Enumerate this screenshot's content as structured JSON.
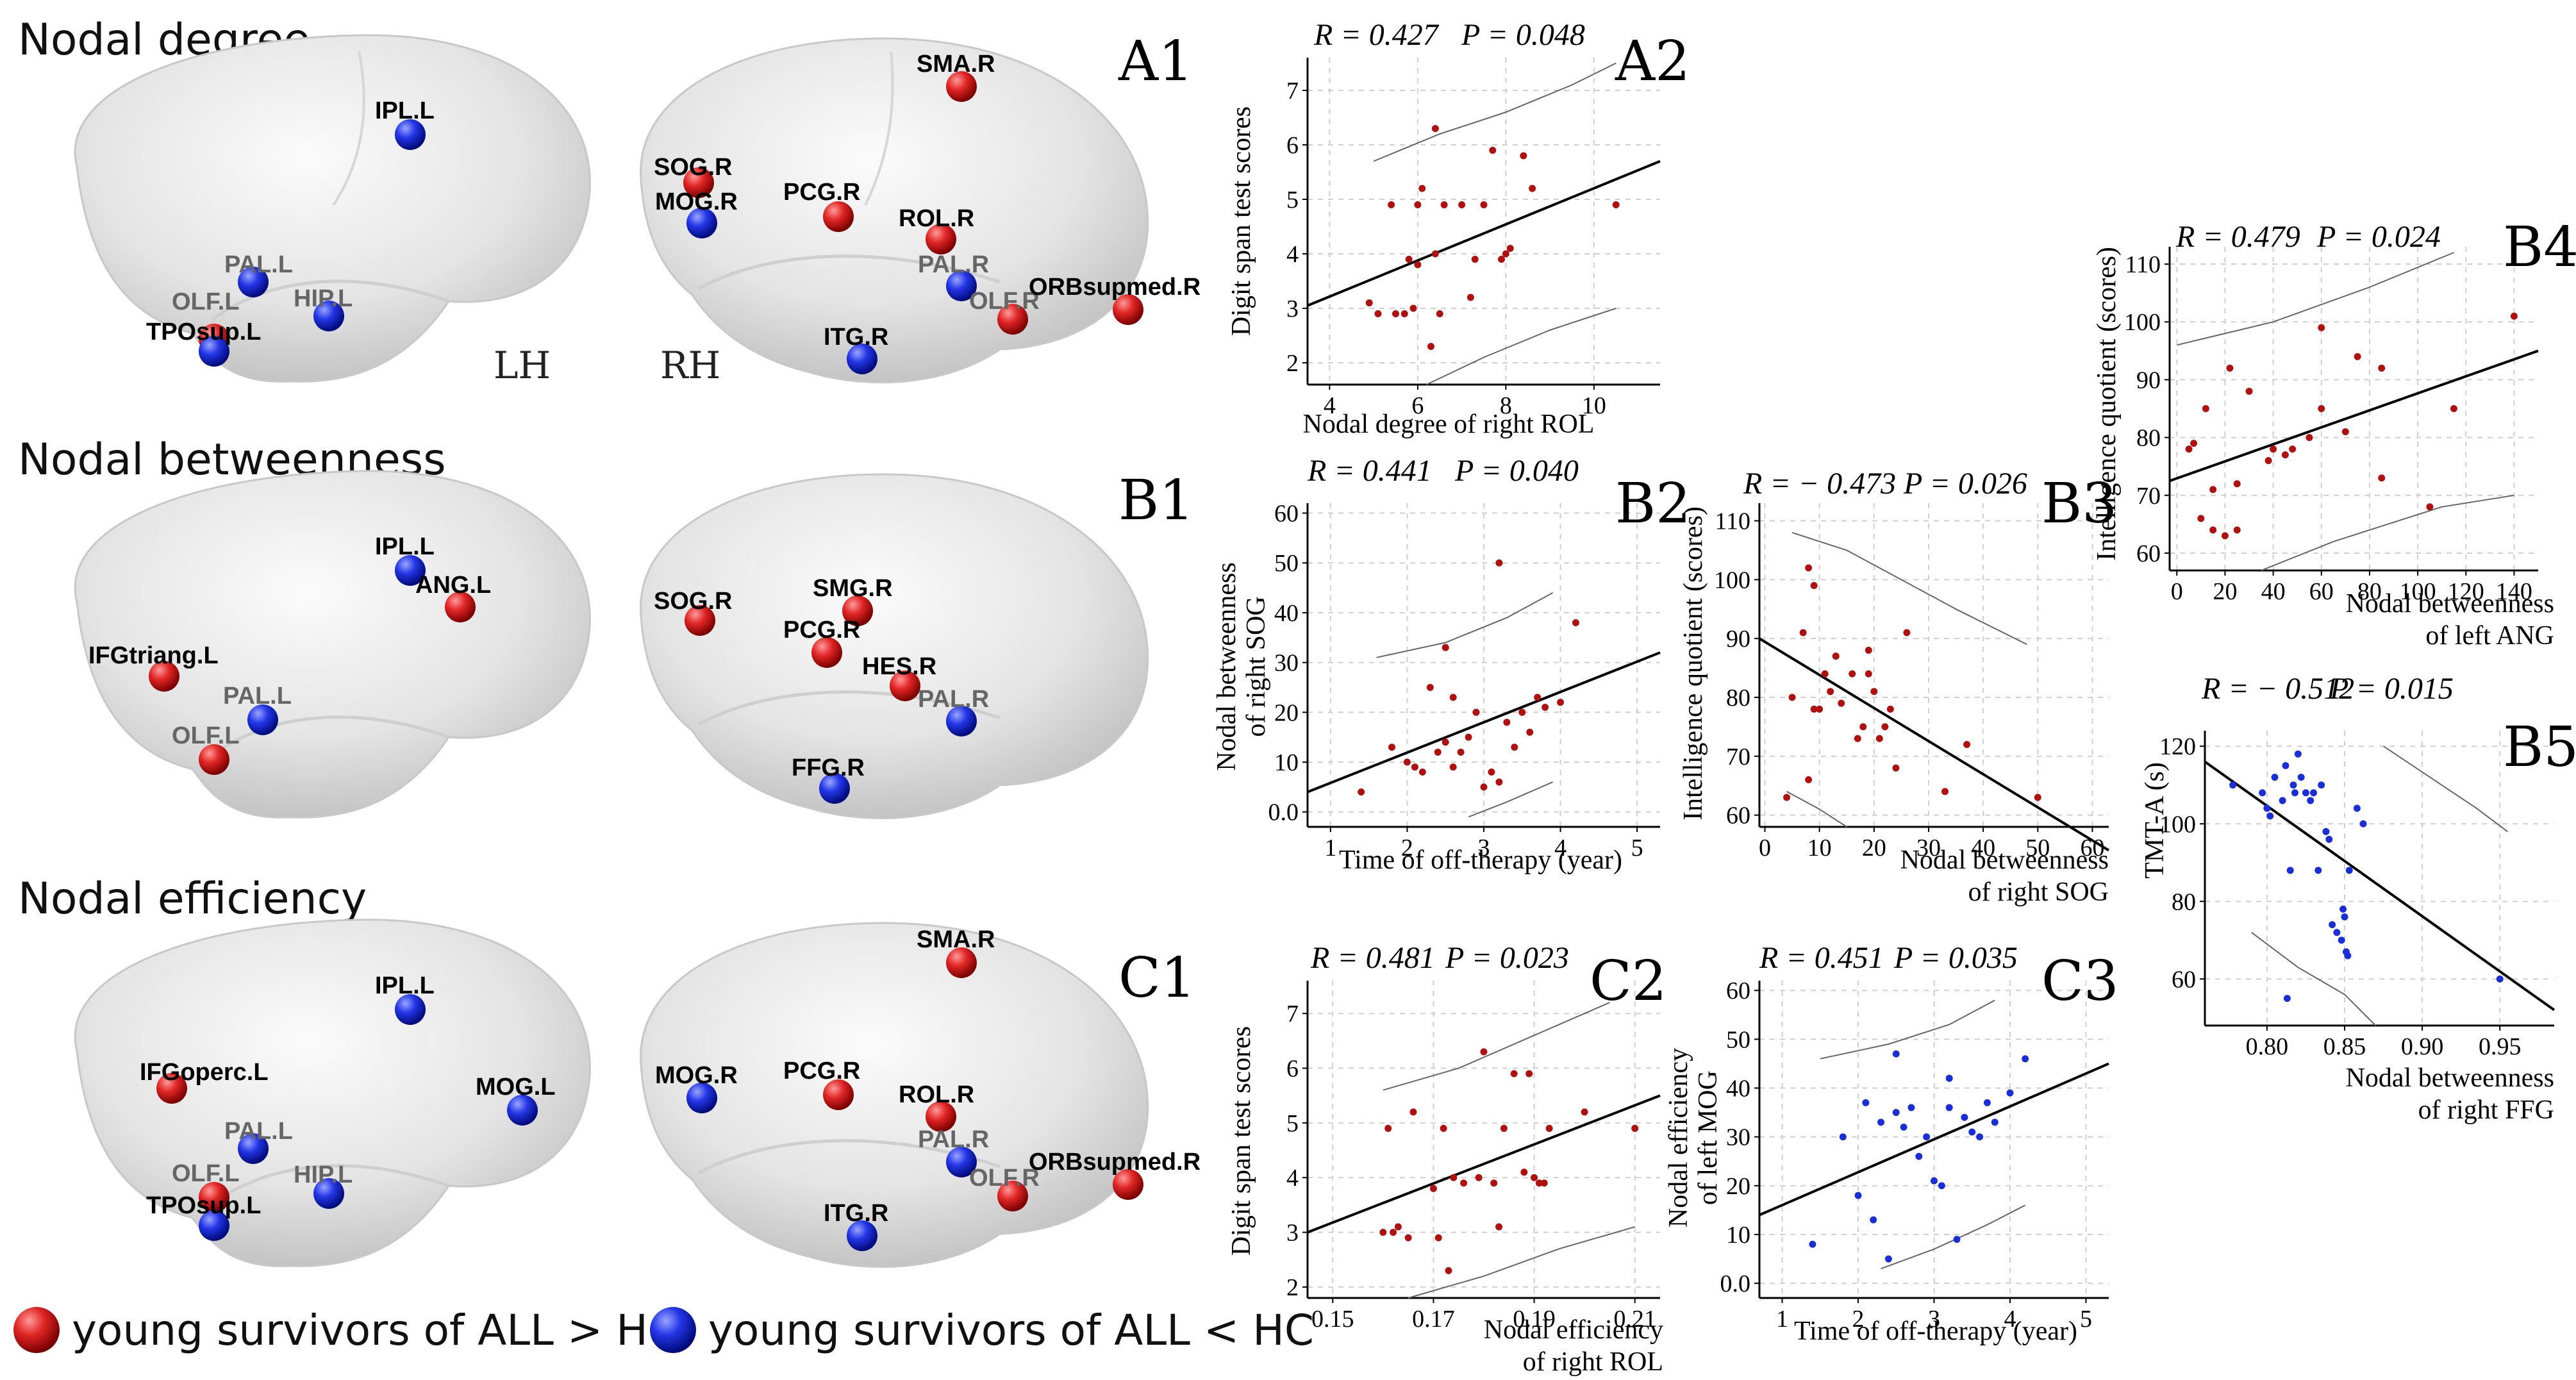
{
  "rows": [
    {
      "title": "Nodal degree",
      "panel": "A1"
    },
    {
      "title": "Nodal betweenness",
      "panel": "B1"
    },
    {
      "title": "Nodal efficiency",
      "panel": "C1"
    }
  ],
  "hemispheres": {
    "left": "LH",
    "right": "RH"
  },
  "nodes": {
    "A1": [
      {
        "label": "IPL.L",
        "group": "lower"
      },
      {
        "label": "PAL.L",
        "group": "lower"
      },
      {
        "label": "HIP.L",
        "group": "lower"
      },
      {
        "label": "OLF.L",
        "group": "higher"
      },
      {
        "label": "TPOsup.L",
        "group": "lower"
      },
      {
        "label": "SMA.R",
        "group": "higher"
      },
      {
        "label": "SOG.R",
        "group": "higher"
      },
      {
        "label": "MOG.R",
        "group": "lower"
      },
      {
        "label": "PCG.R",
        "group": "higher"
      },
      {
        "label": "ROL.R",
        "group": "higher"
      },
      {
        "label": "PAL.R",
        "group": "lower"
      },
      {
        "label": "OLF.R",
        "group": "higher"
      },
      {
        "label": "ORBsupmed.R",
        "group": "higher"
      },
      {
        "label": "ITG.R",
        "group": "lower"
      }
    ],
    "B1": [
      {
        "label": "IPL.L",
        "group": "lower"
      },
      {
        "label": "ANG.L",
        "group": "higher"
      },
      {
        "label": "IFGtriang.L",
        "group": "higher"
      },
      {
        "label": "PAL.L",
        "group": "lower"
      },
      {
        "label": "OLF.L",
        "group": "higher"
      },
      {
        "label": "SOG.R",
        "group": "higher"
      },
      {
        "label": "SMG.R",
        "group": "higher"
      },
      {
        "label": "PCG.R",
        "group": "higher"
      },
      {
        "label": "HES.R",
        "group": "higher"
      },
      {
        "label": "PAL.R",
        "group": "lower"
      },
      {
        "label": "FFG.R",
        "group": "lower"
      }
    ],
    "C1": [
      {
        "label": "IPL.L",
        "group": "lower"
      },
      {
        "label": "IFGoperc.L",
        "group": "higher"
      },
      {
        "label": "MOG.L",
        "group": "lower"
      },
      {
        "label": "PAL.L",
        "group": "lower"
      },
      {
        "label": "OLF.L",
        "group": "higher"
      },
      {
        "label": "HIP.L",
        "group": "lower"
      },
      {
        "label": "TPOsup.L",
        "group": "lower"
      },
      {
        "label": "SMA.R",
        "group": "higher"
      },
      {
        "label": "MOG.R",
        "group": "lower"
      },
      {
        "label": "PCG.R",
        "group": "higher"
      },
      {
        "label": "ROL.R",
        "group": "higher"
      },
      {
        "label": "PAL.R",
        "group": "lower"
      },
      {
        "label": "OLF.R",
        "group": "higher"
      },
      {
        "label": "ORBsupmed.R",
        "group": "higher"
      },
      {
        "label": "ITG.R",
        "group": "lower"
      }
    ]
  },
  "legend": {
    "higher": "young survivors of ALL > HC",
    "lower": "young survivors of ALL < HC"
  },
  "colors": {
    "higher": "#d62020",
    "lower": "#1c2ee0",
    "dotRed": "#b01010",
    "dotBlue": "#1a2ed8"
  },
  "chart_data": [
    {
      "id": "A2",
      "type": "scatter",
      "label": "A2",
      "stats": {
        "r": "R = 0.427",
        "p": "P = 0.048"
      },
      "xlabel": [
        "Nodal degree  of right ROL"
      ],
      "ylabel": [
        "Digit span test scores"
      ],
      "xlim": [
        3.5,
        11.5
      ],
      "ylim": [
        1.6,
        7.6
      ],
      "xticks": [
        4,
        6,
        8,
        10
      ],
      "yticks": [
        2,
        3,
        4,
        5,
        6,
        7
      ],
      "color": "dotRed",
      "x": [
        4.9,
        5.1,
        5.4,
        5.5,
        5.7,
        5.8,
        5.9,
        6.0,
        6.0,
        6.1,
        6.3,
        6.4,
        6.4,
        6.5,
        6.6,
        7.0,
        7.2,
        7.3,
        7.5,
        7.7,
        7.9,
        8.0,
        8.1,
        8.4,
        8.6,
        10.5
      ],
      "y": [
        3.1,
        2.9,
        4.9,
        2.9,
        2.9,
        3.9,
        3.0,
        4.9,
        3.8,
        5.2,
        2.3,
        4.0,
        6.3,
        2.9,
        4.9,
        4.9,
        3.2,
        3.9,
        4.9,
        5.9,
        3.9,
        4.0,
        4.1,
        5.8,
        5.2,
        4.9
      ],
      "fit": [
        [
          3.5,
          3.05
        ],
        [
          11.5,
          5.7
        ]
      ],
      "ci_upper": [
        [
          5.0,
          5.7
        ],
        [
          6.5,
          6.2
        ],
        [
          8.0,
          6.6
        ],
        [
          9.5,
          7.1
        ],
        [
          10.5,
          7.5
        ]
      ],
      "ci_lower": [
        [
          6.2,
          1.6
        ],
        [
          7.5,
          2.1
        ],
        [
          9.0,
          2.6
        ],
        [
          10.5,
          3.0
        ]
      ]
    },
    {
      "id": "B2",
      "type": "scatter",
      "label": "B2",
      "stats": {
        "r": "R = 0.441",
        "p": "P = 0.040"
      },
      "xlabel": [
        "Time of off-therapy (year)"
      ],
      "ylabel": [
        "Nodal betweenness",
        "of right SOG"
      ],
      "xlim": [
        0.7,
        5.3
      ],
      "ylim": [
        -3,
        62
      ],
      "xticks": [
        1,
        2,
        3,
        4,
        5
      ],
      "yticks": [
        0,
        10,
        20,
        30,
        40,
        50,
        60
      ],
      "ytickLabels": [
        "0.0",
        "10",
        "20",
        "30",
        "40",
        "50",
        "60"
      ],
      "color": "dotRed",
      "x": [
        1.4,
        1.8,
        2.0,
        2.1,
        2.2,
        2.3,
        2.4,
        2.5,
        2.5,
        2.6,
        2.6,
        2.7,
        2.8,
        2.9,
        3.0,
        3.1,
        3.2,
        3.2,
        3.3,
        3.4,
        3.5,
        3.6,
        3.7,
        3.8,
        4.0,
        4.2
      ],
      "y": [
        4,
        13,
        10,
        9,
        8,
        25,
        12,
        33,
        14,
        23,
        9,
        12,
        15,
        20,
        5,
        8,
        6,
        50,
        18,
        13,
        20,
        16,
        23,
        21,
        22,
        38
      ],
      "fit": [
        [
          0.7,
          4
        ],
        [
          5.3,
          32
        ]
      ],
      "ci_upper": [
        [
          1.6,
          31
        ],
        [
          2.5,
          34
        ],
        [
          3.3,
          39
        ],
        [
          3.9,
          44
        ]
      ],
      "ci_lower": [
        [
          2.8,
          -1
        ],
        [
          3.3,
          2
        ],
        [
          3.9,
          6
        ]
      ]
    },
    {
      "id": "B3",
      "type": "scatter",
      "label": "B3",
      "stats": {
        "r": "R = − 0.473",
        "p": "P = 0.026"
      },
      "xlabel": [
        "Nodal betweenness",
        "of right SOG"
      ],
      "ylabel": [
        "Intelligence quotient (scores)"
      ],
      "xlim": [
        -1,
        63
      ],
      "ylim": [
        58,
        113
      ],
      "xticks": [
        0,
        10,
        20,
        30,
        40,
        50,
        60
      ],
      "yticks": [
        60,
        70,
        80,
        90,
        100,
        110
      ],
      "color": "dotRed",
      "x": [
        4,
        5,
        7,
        8,
        8,
        9,
        9,
        10,
        11,
        12,
        13,
        13,
        14,
        16,
        17,
        18,
        19,
        19,
        20,
        21,
        22,
        23,
        24,
        26,
        33,
        37,
        50
      ],
      "y": [
        63,
        80,
        91,
        102,
        66,
        78,
        99,
        78,
        84,
        81,
        87,
        87,
        79,
        84,
        73,
        75,
        88,
        84,
        81,
        73,
        75,
        78,
        68,
        91,
        64,
        72,
        63
      ],
      "fit": [
        [
          -1,
          90
        ],
        [
          63,
          54
        ]
      ],
      "ci_upper": [
        [
          5,
          108
        ],
        [
          15,
          105
        ],
        [
          25,
          100
        ],
        [
          35,
          95
        ],
        [
          48,
          89
        ]
      ],
      "ci_lower": [
        [
          4,
          64
        ],
        [
          10,
          61
        ],
        [
          15,
          58
        ]
      ]
    },
    {
      "id": "B4",
      "type": "scatter",
      "label": "B4",
      "stats": {
        "r": "R = 0.479",
        "p": "P = 0.024"
      },
      "xlabel": [
        "Nodal betweenness",
        "of left ANG"
      ],
      "ylabel": [
        "Intelligence quotient (scores)"
      ],
      "xlim": [
        -3,
        150
      ],
      "ylim": [
        57,
        113
      ],
      "xticks": [
        0,
        20,
        40,
        60,
        80,
        100,
        120,
        140
      ],
      "yticks": [
        60,
        70,
        80,
        90,
        100,
        110
      ],
      "color": "dotRed",
      "x": [
        5,
        7,
        10,
        12,
        15,
        15,
        20,
        22,
        25,
        25,
        30,
        38,
        40,
        45,
        48,
        55,
        60,
        60,
        70,
        75,
        85,
        85,
        105,
        115,
        140
      ],
      "y": [
        78,
        79,
        66,
        85,
        64,
        71,
        63,
        92,
        64,
        72,
        88,
        76,
        78,
        77,
        78,
        80,
        85,
        99,
        81,
        94,
        73,
        92,
        68,
        85,
        101
      ],
      "fit": [
        [
          -3,
          72.5
        ],
        [
          150,
          95
        ]
      ],
      "ci_upper": [
        [
          0,
          96
        ],
        [
          40,
          100
        ],
        [
          80,
          106
        ],
        [
          115,
          112
        ]
      ],
      "ci_lower": [
        [
          35,
          57
        ],
        [
          65,
          62
        ],
        [
          110,
          68
        ],
        [
          140,
          70
        ]
      ]
    },
    {
      "id": "B5",
      "type": "scatter",
      "label": "B5",
      "stats": {
        "r": "R = − 0.512",
        "p": "P = 0.015"
      },
      "xlabel": [
        "Nodal betweenness",
        "of right FFG"
      ],
      "ylabel": [
        "TMT-A (s)"
      ],
      "xlim": [
        0.76,
        0.985
      ],
      "ylim": [
        48,
        124
      ],
      "xticks": [
        0.8,
        0.85,
        0.9,
        0.95
      ],
      "yticks": [
        60,
        80,
        100,
        120
      ],
      "ytickLabels": [
        "60",
        "80",
        "100",
        "120"
      ],
      "xtickLabels": [
        "0.80",
        "0.85",
        "0.90",
        "0.95"
      ],
      "color": "dotBlue",
      "x": [
        0.778,
        0.797,
        0.8,
        0.802,
        0.805,
        0.81,
        0.812,
        0.813,
        0.815,
        0.817,
        0.818,
        0.82,
        0.822,
        0.825,
        0.828,
        0.83,
        0.833,
        0.835,
        0.838,
        0.84,
        0.842,
        0.845,
        0.848,
        0.849,
        0.85,
        0.851,
        0.852,
        0.853,
        0.858,
        0.862,
        0.95
      ],
      "y": [
        110,
        108,
        104,
        102,
        112,
        106,
        115,
        55,
        88,
        110,
        108,
        118,
        112,
        108,
        106,
        108,
        88,
        110,
        98,
        96,
        74,
        72,
        70,
        78,
        76,
        67,
        66,
        88,
        104,
        100,
        60
      ],
      "fit": [
        [
          0.76,
          116
        ],
        [
          0.985,
          52
        ]
      ],
      "ci_upper": [
        [
          0.875,
          120
        ],
        [
          0.905,
          112
        ],
        [
          0.935,
          104
        ],
        [
          0.955,
          98
        ]
      ],
      "ci_lower": [
        [
          0.79,
          72
        ],
        [
          0.82,
          63
        ],
        [
          0.85,
          56
        ],
        [
          0.87,
          48
        ]
      ]
    },
    {
      "id": "C2",
      "type": "scatter",
      "label": "C2",
      "stats": {
        "r": "R = 0.481",
        "p": "P = 0.023"
      },
      "xlabel": [
        "Nodal efficiency",
        "of right ROL"
      ],
      "ylabel": [
        "Digit span test scores"
      ],
      "xlim": [
        0.145,
        0.215
      ],
      "ylim": [
        1.8,
        7.6
      ],
      "xticks": [
        0.15,
        0.17,
        0.19,
        0.21
      ],
      "yticks": [
        2,
        3,
        4,
        5,
        6,
        7
      ],
      "xtickLabels": [
        "0.15",
        "0.17",
        "0.19",
        "0.21"
      ],
      "color": "dotRed",
      "x": [
        0.16,
        0.161,
        0.162,
        0.163,
        0.165,
        0.166,
        0.17,
        0.171,
        0.172,
        0.173,
        0.174,
        0.176,
        0.179,
        0.18,
        0.182,
        0.183,
        0.184,
        0.186,
        0.188,
        0.189,
        0.19,
        0.191,
        0.192,
        0.193,
        0.2,
        0.21
      ],
      "y": [
        3.0,
        4.9,
        3.0,
        3.1,
        2.9,
        5.2,
        3.8,
        2.9,
        4.9,
        2.3,
        4.0,
        3.9,
        4.0,
        6.3,
        3.9,
        3.1,
        4.9,
        5.9,
        4.1,
        5.9,
        4.0,
        3.9,
        3.9,
        4.9,
        5.2,
        4.9
      ],
      "fit": [
        [
          0.145,
          3.0
        ],
        [
          0.215,
          5.5
        ]
      ],
      "ci_upper": [
        [
          0.16,
          5.6
        ],
        [
          0.175,
          6.0
        ],
        [
          0.19,
          6.6
        ],
        [
          0.205,
          7.2
        ]
      ],
      "ci_lower": [
        [
          0.165,
          1.8
        ],
        [
          0.18,
          2.2
        ],
        [
          0.195,
          2.7
        ],
        [
          0.21,
          3.1
        ]
      ]
    },
    {
      "id": "C3",
      "type": "scatter",
      "label": "C3",
      "stats": {
        "r": "R = 0.451",
        "p": "P = 0.035"
      },
      "xlabel": [
        "Time of off-therapy (year)"
      ],
      "ylabel": [
        "Nodal efficiency",
        "of left MOG"
      ],
      "xlim": [
        0.7,
        5.3
      ],
      "ylim": [
        -3,
        62
      ],
      "xticks": [
        1,
        2,
        3,
        4,
        5
      ],
      "yticks": [
        0,
        10,
        20,
        30,
        40,
        50,
        60
      ],
      "ytickLabels": [
        "0.0",
        "10",
        "20",
        "30",
        "40",
        "50",
        "60"
      ],
      "color": "dotBlue",
      "x": [
        1.4,
        1.8,
        2.0,
        2.1,
        2.2,
        2.3,
        2.4,
        2.5,
        2.5,
        2.6,
        2.7,
        2.8,
        2.9,
        3.0,
        3.1,
        3.2,
        3.2,
        3.3,
        3.4,
        3.5,
        3.6,
        3.7,
        3.8,
        4.0,
        4.2
      ],
      "y": [
        8,
        30,
        18,
        37,
        13,
        33,
        5,
        47,
        35,
        32,
        36,
        26,
        30,
        21,
        20,
        42,
        36,
        9,
        34,
        31,
        30,
        37,
        33,
        39,
        46
      ],
      "fit": [
        [
          0.7,
          14
        ],
        [
          5.3,
          45
        ]
      ],
      "ci_upper": [
        [
          1.5,
          46
        ],
        [
          2.4,
          49
        ],
        [
          3.2,
          53
        ],
        [
          3.8,
          58
        ]
      ],
      "ci_lower": [
        [
          2.3,
          3
        ],
        [
          3.0,
          7
        ],
        [
          3.7,
          12
        ],
        [
          4.2,
          16
        ]
      ]
    }
  ]
}
